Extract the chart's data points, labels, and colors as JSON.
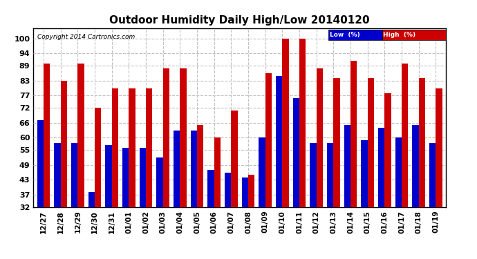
{
  "title": "Outdoor Humidity Daily High/Low 20140120",
  "copyright": "Copyright 2014 Cartronics.com",
  "categories": [
    "12/27",
    "12/28",
    "12/29",
    "12/30",
    "12/31",
    "01/01",
    "01/02",
    "01/03",
    "01/04",
    "01/05",
    "01/06",
    "01/07",
    "01/08",
    "01/09",
    "01/10",
    "01/11",
    "01/12",
    "01/13",
    "01/14",
    "01/15",
    "01/16",
    "01/17",
    "01/18",
    "01/19"
  ],
  "low_values": [
    67,
    58,
    58,
    38,
    57,
    56,
    56,
    52,
    63,
    63,
    47,
    46,
    44,
    60,
    85,
    76,
    58,
    58,
    65,
    59,
    64,
    60,
    65,
    58
  ],
  "high_values": [
    90,
    83,
    90,
    72,
    80,
    80,
    80,
    88,
    88,
    65,
    60,
    71,
    45,
    86,
    100,
    100,
    88,
    84,
    91,
    84,
    78,
    90,
    84,
    80
  ],
  "low_color": "#0000cc",
  "high_color": "#cc0000",
  "background_color": "#ffffff",
  "grid_color": "#c0c0c0",
  "yticks": [
    32,
    37,
    43,
    49,
    55,
    60,
    66,
    72,
    77,
    83,
    89,
    94,
    100
  ],
  "ymin": 32,
  "ymax": 104,
  "bar_width": 0.38,
  "legend_low_label": "Low  (%)",
  "legend_high_label": "High  (%)"
}
